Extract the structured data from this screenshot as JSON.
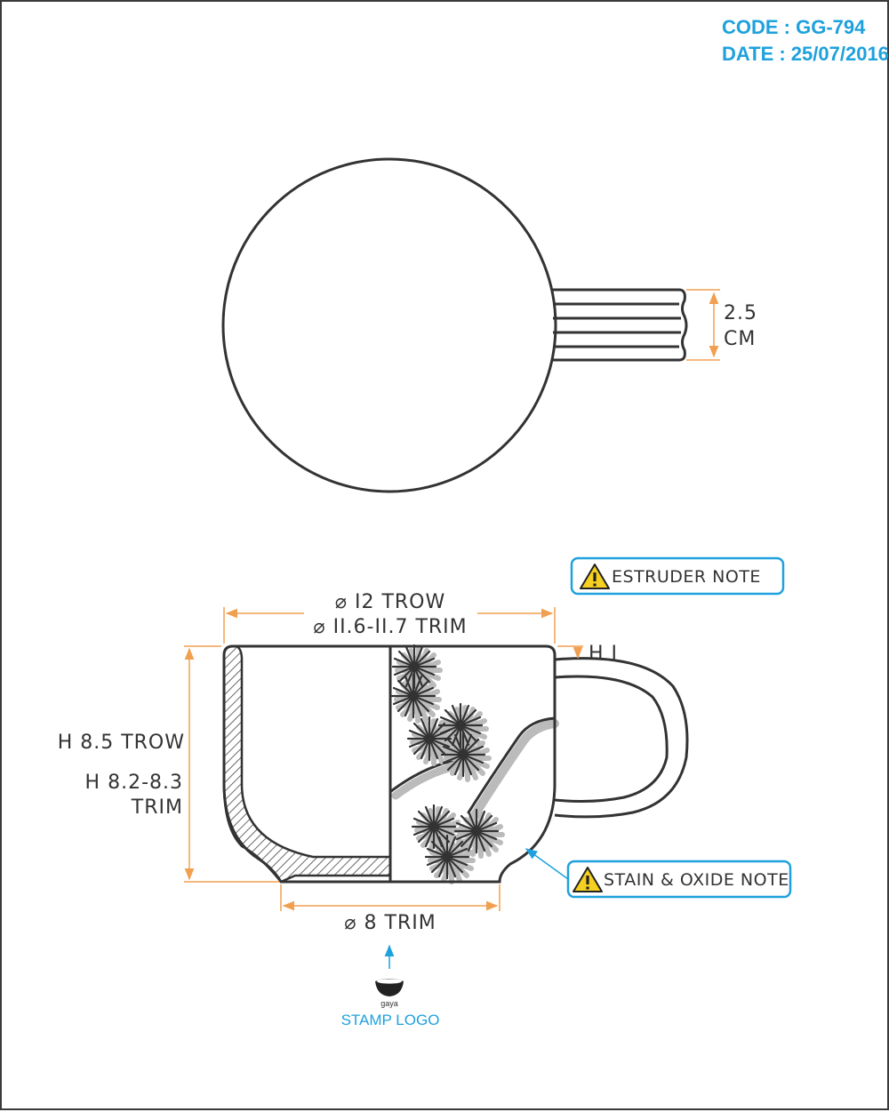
{
  "header": {
    "code": "CODE : GG-794",
    "date": "DATE : 25/07/2016"
  },
  "top_view": {
    "handle_width_value": "2.5",
    "handle_width_unit": "CM"
  },
  "side_view": {
    "diameter_trow": "⌀ I2 TROW",
    "diameter_trim": "⌀ II.6-II.7 TRIM",
    "handle_offset": "H I",
    "height_trow": "H 8.5 TROW",
    "height_trim_line1": "H 8.2-8.3",
    "height_trim_line2": "TRIM",
    "base_diameter": "⌀ 8 TRIM"
  },
  "notes": {
    "extruder": "ESTRUDER NOTE",
    "stain_oxide": "STAIN & OXIDE NOTE"
  },
  "stamp": {
    "brand": "gaya",
    "label": "STAMP LOGO"
  },
  "colors": {
    "outline": "#333333",
    "dimension": "#f0a050",
    "accent": "#1ea1dc",
    "warning": "#f5d020",
    "decoration": "#bbbbbb"
  }
}
